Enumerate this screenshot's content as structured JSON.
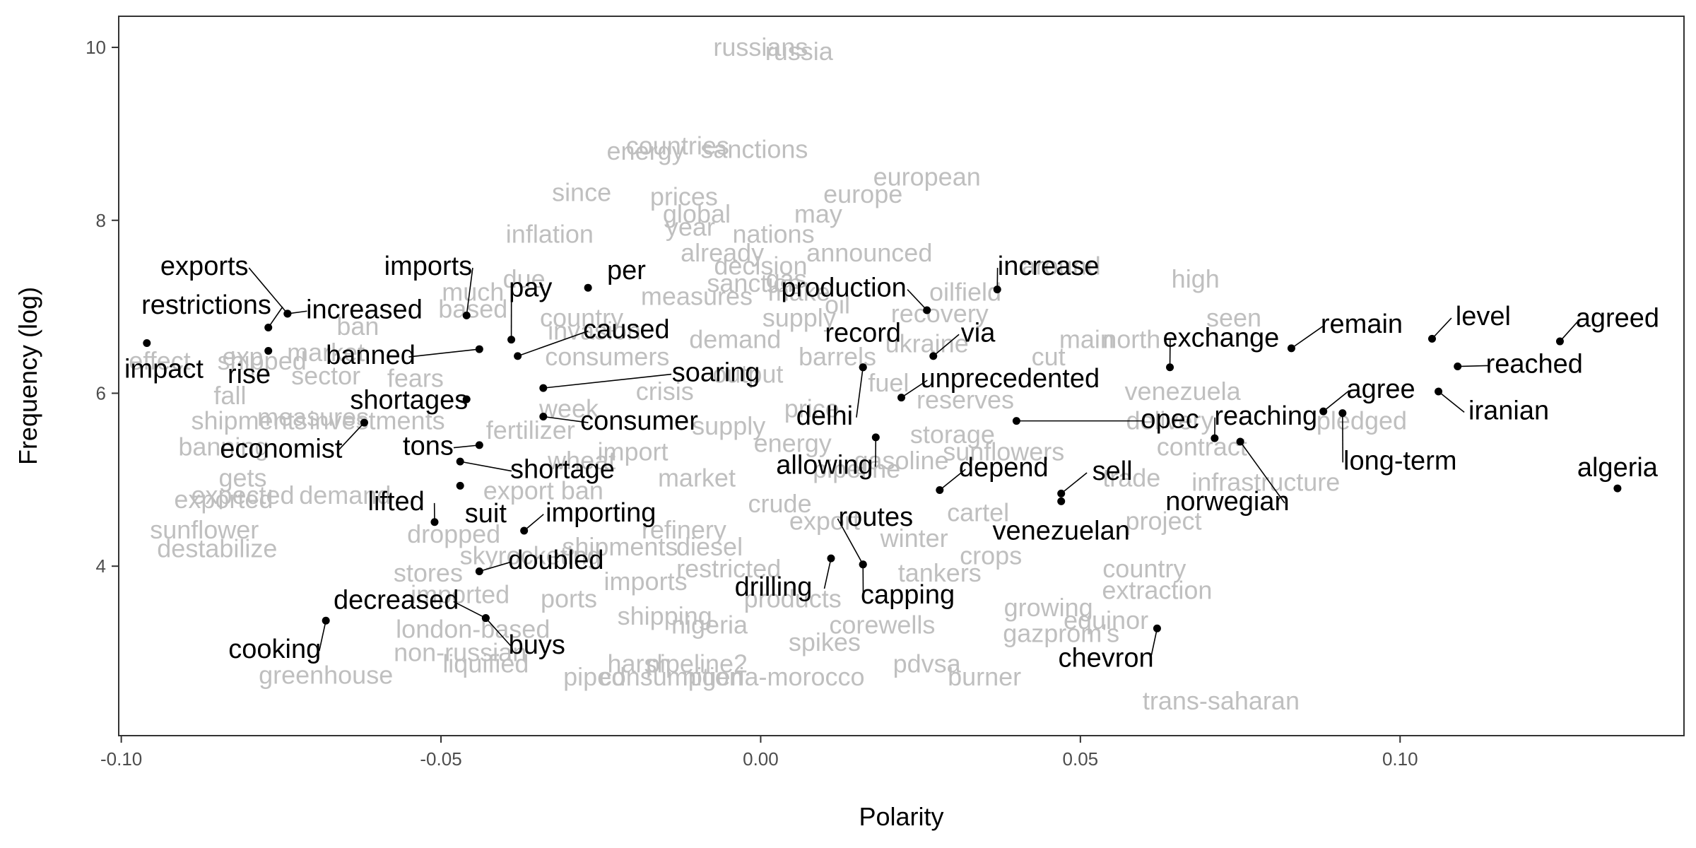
{
  "chart_data": {
    "type": "scatter",
    "title": "",
    "xlabel": "Polarity",
    "ylabel": "Frequency (log)",
    "xlim": [
      -0.1004,
      0.1444
    ],
    "ylim": [
      2.04,
      10.36
    ],
    "x_ticks": [
      -0.1,
      -0.05,
      0.0,
      0.05,
      0.1
    ],
    "x_tick_labels": [
      "-0.10",
      "-0.05",
      "0.00",
      "0.05",
      "0.10"
    ],
    "y_ticks": [
      4,
      6,
      8,
      10
    ],
    "y_tick_labels": [
      "4",
      "6",
      "8",
      "10"
    ],
    "grid": false,
    "legend": "none",
    "colors": {
      "highlight": "#000000",
      "background_words": "#bfbfbf",
      "frame": "#333333"
    },
    "highlighted_words": [
      {
        "word": "restrictions",
        "x": -0.077,
        "y": 6.76,
        "lx": -0.093,
        "ly": 7.0
      },
      {
        "word": "exports",
        "x": -0.074,
        "y": 6.92,
        "lx": -0.087,
        "ly": 7.45
      },
      {
        "word": "increased",
        "x": -0.074,
        "y": 6.92,
        "lx": -0.062,
        "ly": 6.95
      },
      {
        "word": "impact",
        "x": -0.096,
        "y": 6.58,
        "lx": -0.1,
        "ly": 6.26
      },
      {
        "word": "rise",
        "x": -0.077,
        "y": 6.49,
        "lx": -0.08,
        "ly": 6.2
      },
      {
        "word": "imports",
        "x": -0.046,
        "y": 6.9,
        "lx": -0.052,
        "ly": 7.45
      },
      {
        "word": "pay",
        "x": -0.039,
        "y": 6.62,
        "lx": -0.036,
        "ly": 7.2
      },
      {
        "word": "per",
        "x": -0.027,
        "y": 7.22,
        "lx": -0.021,
        "ly": 7.4
      },
      {
        "word": "caused",
        "x": -0.038,
        "y": 6.43,
        "lx": -0.021,
        "ly": 6.72
      },
      {
        "word": "banned",
        "x": -0.044,
        "y": 6.51,
        "lx": -0.061,
        "ly": 6.42
      },
      {
        "word": "soaring",
        "x": -0.034,
        "y": 6.06,
        "lx": -0.007,
        "ly": 6.22
      },
      {
        "word": "shortages",
        "x": -0.046,
        "y": 5.93,
        "lx": -0.055,
        "ly": 5.9
      },
      {
        "word": "consumer",
        "x": -0.034,
        "y": 5.73,
        "lx": -0.019,
        "ly": 5.66
      },
      {
        "word": "economist",
        "x": -0.062,
        "y": 5.66,
        "lx": -0.075,
        "ly": 5.34
      },
      {
        "word": "tons",
        "x": -0.044,
        "y": 5.4,
        "lx": -0.052,
        "ly": 5.37
      },
      {
        "word": "shortage",
        "x": -0.047,
        "y": 5.21,
        "lx": -0.031,
        "ly": 5.1
      },
      {
        "word": "lifted",
        "x": -0.051,
        "y": 4.51,
        "lx": -0.057,
        "ly": 4.73
      },
      {
        "word": "suit",
        "x": -0.047,
        "y": 4.93,
        "lx": -0.043,
        "ly": 4.59
      },
      {
        "word": "importing",
        "x": -0.037,
        "y": 4.41,
        "lx": -0.025,
        "ly": 4.6
      },
      {
        "word": "doubled",
        "x": -0.044,
        "y": 3.94,
        "lx": -0.032,
        "ly": 4.05
      },
      {
        "word": "decreased",
        "x": -0.043,
        "y": 3.4,
        "lx": -0.057,
        "ly": 3.59
      },
      {
        "word": "cooking",
        "x": -0.068,
        "y": 3.37,
        "lx": -0.076,
        "ly": 3.02
      },
      {
        "word": "buys",
        "x": -0.043,
        "y": 3.4,
        "lx": -0.035,
        "ly": 3.07
      },
      {
        "word": "production",
        "x": 0.026,
        "y": 6.96,
        "lx": 0.013,
        "ly": 7.2
      },
      {
        "word": "increase",
        "x": 0.037,
        "y": 7.2,
        "lx": 0.045,
        "ly": 7.45
      },
      {
        "word": "record",
        "x": 0.016,
        "y": 6.3,
        "lx": 0.016,
        "ly": 6.68
      },
      {
        "word": "via",
        "x": 0.027,
        "y": 6.43,
        "lx": 0.034,
        "ly": 6.68
      },
      {
        "word": "delhi",
        "x": 0.016,
        "y": 6.3,
        "lx": 0.01,
        "ly": 5.72
      },
      {
        "word": "unprecedented",
        "x": 0.022,
        "y": 5.95,
        "lx": 0.039,
        "ly": 6.15
      },
      {
        "word": "opec",
        "x": 0.04,
        "y": 5.68,
        "lx": 0.064,
        "ly": 5.68
      },
      {
        "word": "allowing",
        "x": 0.018,
        "y": 5.49,
        "lx": 0.01,
        "ly": 5.15
      },
      {
        "word": "depend",
        "x": 0.028,
        "y": 4.88,
        "lx": 0.038,
        "ly": 5.12
      },
      {
        "word": "sell",
        "x": 0.047,
        "y": 4.84,
        "lx": 0.055,
        "ly": 5.08
      },
      {
        "word": "routes",
        "x": 0.016,
        "y": 4.02,
        "lx": 0.018,
        "ly": 4.55
      },
      {
        "word": "venezuelan",
        "x": 0.047,
        "y": 4.75,
        "lx": 0.047,
        "ly": 4.39
      },
      {
        "word": "drilling",
        "x": 0.011,
        "y": 4.09,
        "lx": 0.002,
        "ly": 3.74
      },
      {
        "word": "capping",
        "x": 0.016,
        "y": 4.02,
        "lx": 0.023,
        "ly": 3.65
      },
      {
        "word": "exchange",
        "x": 0.064,
        "y": 6.3,
        "lx": 0.072,
        "ly": 6.62
      },
      {
        "word": "remain",
        "x": 0.083,
        "y": 6.52,
        "lx": 0.094,
        "ly": 6.78
      },
      {
        "word": "level",
        "x": 0.105,
        "y": 6.63,
        "lx": 0.113,
        "ly": 6.87
      },
      {
        "word": "agreed",
        "x": 0.125,
        "y": 6.6,
        "lx": 0.134,
        "ly": 6.85
      },
      {
        "word": "reached",
        "x": 0.109,
        "y": 6.31,
        "lx": 0.121,
        "ly": 6.32
      },
      {
        "word": "agree",
        "x": 0.088,
        "y": 5.79,
        "lx": 0.097,
        "ly": 6.03
      },
      {
        "word": "iranian",
        "x": 0.106,
        "y": 6.02,
        "lx": 0.117,
        "ly": 5.78
      },
      {
        "word": "reaching",
        "x": 0.071,
        "y": 5.48,
        "lx": 0.079,
        "ly": 5.72
      },
      {
        "word": "long-term",
        "x": 0.091,
        "y": 5.77,
        "lx": 0.1,
        "ly": 5.2
      },
      {
        "word": "norwegian",
        "x": 0.075,
        "y": 5.44,
        "lx": 0.073,
        "ly": 4.73
      },
      {
        "word": "chevron",
        "x": 0.062,
        "y": 3.28,
        "lx": 0.054,
        "ly": 2.92
      },
      {
        "word": "algeria",
        "x": 0.134,
        "y": 4.9,
        "lx": 0.134,
        "ly": 5.12
      }
    ],
    "background_words": [
      {
        "word": "russians",
        "x": 0.0,
        "y": 9.98
      },
      {
        "word": "russia",
        "x": 0.006,
        "y": 9.93
      },
      {
        "word": "countries",
        "x": -0.013,
        "y": 8.84
      },
      {
        "word": "energy",
        "x": -0.018,
        "y": 8.78
      },
      {
        "word": "sanctions",
        "x": -0.001,
        "y": 8.8
      },
      {
        "word": "european",
        "x": 0.026,
        "y": 8.48
      },
      {
        "word": "europe",
        "x": 0.016,
        "y": 8.28
      },
      {
        "word": "since",
        "x": -0.028,
        "y": 8.3
      },
      {
        "word": "prices",
        "x": -0.012,
        "y": 8.25
      },
      {
        "word": "global",
        "x": -0.01,
        "y": 8.05
      },
      {
        "word": "may",
        "x": 0.009,
        "y": 8.05
      },
      {
        "word": "year",
        "x": -0.011,
        "y": 7.9
      },
      {
        "word": "inflation",
        "x": -0.033,
        "y": 7.82
      },
      {
        "word": "nations",
        "x": 0.002,
        "y": 7.82
      },
      {
        "word": "announced",
        "x": 0.017,
        "y": 7.6
      },
      {
        "word": "already",
        "x": -0.006,
        "y": 7.6
      },
      {
        "word": "decision",
        "x": 0.0,
        "y": 7.45
      },
      {
        "word": "around",
        "x": 0.047,
        "y": 7.45
      },
      {
        "word": "high",
        "x": 0.068,
        "y": 7.3
      },
      {
        "word": "due",
        "x": -0.037,
        "y": 7.3
      },
      {
        "word": "much",
        "x": -0.045,
        "y": 7.15
      },
      {
        "word": "measures",
        "x": -0.01,
        "y": 7.1
      },
      {
        "word": "make",
        "x": 0.006,
        "y": 7.15
      },
      {
        "word": "oilfield",
        "x": 0.032,
        "y": 7.15
      },
      {
        "word": "seen",
        "x": 0.074,
        "y": 6.85
      },
      {
        "word": "based",
        "x": -0.045,
        "y": 6.95
      },
      {
        "word": "ban",
        "x": -0.063,
        "y": 6.75
      },
      {
        "word": "country",
        "x": -0.028,
        "y": 6.85
      },
      {
        "word": "supply",
        "x": 0.006,
        "y": 6.85
      },
      {
        "word": "recovery",
        "x": 0.028,
        "y": 6.9
      },
      {
        "word": "main",
        "x": 0.051,
        "y": 6.6
      },
      {
        "word": "north",
        "x": 0.058,
        "y": 6.6
      },
      {
        "word": "exp",
        "x": -0.081,
        "y": 6.4
      },
      {
        "word": "market",
        "x": -0.068,
        "y": 6.45
      },
      {
        "word": "effect",
        "x": -0.101,
        "y": 6.35
      },
      {
        "word": "cut",
        "x": 0.045,
        "y": 6.4
      },
      {
        "word": "shipped",
        "x": -0.078,
        "y": 6.35
      },
      {
        "word": "sector",
        "x": -0.068,
        "y": 6.18
      },
      {
        "word": "fears",
        "x": -0.054,
        "y": 6.15
      },
      {
        "word": "venezuela",
        "x": 0.066,
        "y": 6.0
      },
      {
        "word": "fall",
        "x": -0.083,
        "y": 5.95
      },
      {
        "word": "shipments",
        "x": -0.08,
        "y": 5.66
      },
      {
        "word": "measures",
        "x": -0.07,
        "y": 5.7
      },
      {
        "word": "investments",
        "x": -0.06,
        "y": 5.66
      },
      {
        "word": "pledged",
        "x": 0.094,
        "y": 5.66
      },
      {
        "word": "delivery",
        "x": 0.064,
        "y": 5.66
      },
      {
        "word": "contract",
        "x": 0.069,
        "y": 5.36
      },
      {
        "word": "banning",
        "x": -0.084,
        "y": 5.36
      },
      {
        "word": "infrastructure",
        "x": 0.079,
        "y": 4.95
      },
      {
        "word": "trade",
        "x": 0.058,
        "y": 5.0
      },
      {
        "word": "gets",
        "x": -0.081,
        "y": 5.0
      },
      {
        "word": "expected",
        "x": -0.081,
        "y": 4.8
      },
      {
        "word": "exported",
        "x": -0.084,
        "y": 4.75
      },
      {
        "word": "demand",
        "x": -0.065,
        "y": 4.8
      },
      {
        "word": "project",
        "x": 0.063,
        "y": 4.5
      },
      {
        "word": "sunflower",
        "x": -0.087,
        "y": 4.4
      },
      {
        "word": "destabilize",
        "x": -0.085,
        "y": 4.18
      },
      {
        "word": "dropped",
        "x": -0.048,
        "y": 4.35
      },
      {
        "word": "skyrocketing",
        "x": -0.036,
        "y": 4.1
      },
      {
        "word": "country",
        "x": 0.06,
        "y": 3.95
      },
      {
        "word": "stores",
        "x": -0.052,
        "y": 3.9
      },
      {
        "word": "extraction",
        "x": 0.062,
        "y": 3.7
      },
      {
        "word": "imported",
        "x": -0.047,
        "y": 3.65
      },
      {
        "word": "growing",
        "x": 0.045,
        "y": 3.5
      },
      {
        "word": "equinor",
        "x": 0.054,
        "y": 3.35
      },
      {
        "word": "london-based",
        "x": -0.045,
        "y": 3.25
      },
      {
        "word": "nigeria",
        "x": -0.008,
        "y": 3.3
      },
      {
        "word": "corewells",
        "x": 0.019,
        "y": 3.3
      },
      {
        "word": "gazprom's",
        "x": 0.047,
        "y": 3.2
      },
      {
        "word": "non-russian",
        "x": -0.047,
        "y": 2.98
      },
      {
        "word": "liquified",
        "x": -0.043,
        "y": 2.85
      },
      {
        "word": "spikes",
        "x": 0.01,
        "y": 3.1
      },
      {
        "word": "pipeline2",
        "x": -0.01,
        "y": 2.85
      },
      {
        "word": "pdvsa",
        "x": 0.026,
        "y": 2.85
      },
      {
        "word": "harsh",
        "x": -0.019,
        "y": 2.85
      },
      {
        "word": "greenhouse",
        "x": -0.068,
        "y": 2.72
      },
      {
        "word": "piped",
        "x": -0.026,
        "y": 2.7
      },
      {
        "word": "consumption",
        "x": -0.014,
        "y": 2.7
      },
      {
        "word": "nigeria-morocco",
        "x": 0.002,
        "y": 2.7
      },
      {
        "word": "burner",
        "x": 0.035,
        "y": 2.7
      },
      {
        "word": "trans-saharan",
        "x": 0.072,
        "y": 2.42
      },
      {
        "word": "supply",
        "x": -0.005,
        "y": 5.6
      },
      {
        "word": "energy",
        "x": 0.005,
        "y": 5.4
      },
      {
        "word": "market",
        "x": -0.01,
        "y": 5.0
      },
      {
        "word": "price",
        "x": 0.008,
        "y": 5.8
      },
      {
        "word": "output",
        "x": -0.002,
        "y": 6.2
      },
      {
        "word": "barrels",
        "x": 0.012,
        "y": 6.4
      },
      {
        "word": "crisis",
        "x": -0.015,
        "y": 6.0
      },
      {
        "word": "crude",
        "x": 0.003,
        "y": 4.7
      },
      {
        "word": "refinery",
        "x": -0.012,
        "y": 4.4
      },
      {
        "word": "export",
        "x": 0.01,
        "y": 4.5
      },
      {
        "word": "import",
        "x": -0.02,
        "y": 5.3
      },
      {
        "word": "pipeline",
        "x": 0.015,
        "y": 5.1
      },
      {
        "word": "imports",
        "x": -0.018,
        "y": 3.8
      },
      {
        "word": "products",
        "x": 0.005,
        "y": 3.6
      },
      {
        "word": "shipments",
        "x": -0.022,
        "y": 4.2
      },
      {
        "word": "winter",
        "x": 0.024,
        "y": 4.3
      },
      {
        "word": "storage",
        "x": 0.03,
        "y": 5.5
      },
      {
        "word": "reserves",
        "x": 0.032,
        "y": 5.9
      },
      {
        "word": "demand",
        "x": -0.004,
        "y": 6.6
      },
      {
        "word": "consumers",
        "x": -0.024,
        "y": 6.4
      },
      {
        "word": "fuel",
        "x": 0.02,
        "y": 6.1
      },
      {
        "word": "diesel",
        "x": -0.008,
        "y": 4.2
      },
      {
        "word": "wheat",
        "x": -0.028,
        "y": 5.2
      },
      {
        "word": "gasoline",
        "x": 0.022,
        "y": 5.2
      },
      {
        "word": "sanction",
        "x": -0.001,
        "y": 7.25
      },
      {
        "word": "gas",
        "x": 0.004,
        "y": 7.3
      },
      {
        "word": "oil",
        "x": 0.012,
        "y": 7.0
      },
      {
        "word": "week",
        "x": -0.03,
        "y": 5.8
      },
      {
        "word": "ukraine",
        "x": 0.026,
        "y": 6.55
      },
      {
        "word": "invasion",
        "x": -0.026,
        "y": 6.7
      },
      {
        "word": "export ban",
        "x": -0.034,
        "y": 4.85
      },
      {
        "word": "restricted",
        "x": -0.005,
        "y": 3.95
      },
      {
        "word": "cartel",
        "x": 0.034,
        "y": 4.6
      },
      {
        "word": "tankers",
        "x": 0.028,
        "y": 3.9
      },
      {
        "word": "ports",
        "x": -0.03,
        "y": 3.6
      },
      {
        "word": "shipping",
        "x": -0.015,
        "y": 3.4
      },
      {
        "word": "crops",
        "x": 0.036,
        "y": 4.1
      },
      {
        "word": "fertilizer",
        "x": -0.036,
        "y": 5.55
      },
      {
        "word": "sunflowers",
        "x": 0.038,
        "y": 5.3
      }
    ]
  }
}
